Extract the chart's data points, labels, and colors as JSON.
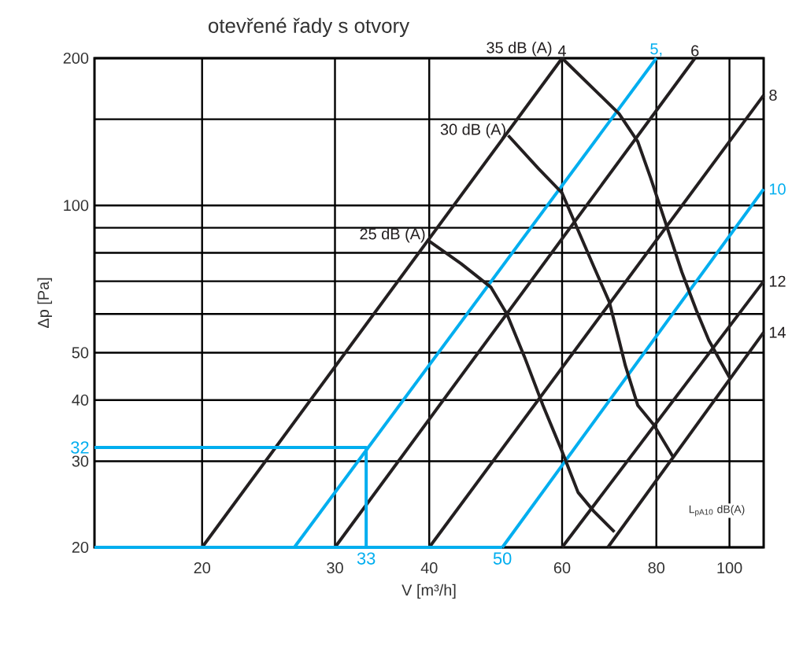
{
  "chart_data": {
    "type": "line",
    "title": "otevřené řady s otvory",
    "xlabel": "V [m³/h]",
    "ylabel": "Δp [Pa]",
    "log": "xy",
    "grid": true,
    "xlim": [
      14.4,
      111
    ],
    "ylim": [
      20,
      200
    ],
    "xticks": [
      20,
      30,
      40,
      60,
      80,
      100
    ],
    "yticks": [
      20,
      30,
      40,
      50,
      {
        "value": 60,
        "label": null
      },
      {
        "value": 70,
        "label": null
      },
      {
        "value": 80,
        "label": null
      },
      {
        "value": 90,
        "label": null
      },
      100,
      {
        "value": 150,
        "label": null
      },
      200
    ],
    "series": [
      {
        "name": "4",
        "color": "#231f20",
        "x": [
          20,
          60
        ],
        "values": [
          20,
          200
        ]
      },
      {
        "name": "5,",
        "color": "#00aeef",
        "x": [
          26.5,
          80
        ],
        "values": [
          20,
          200
        ]
      },
      {
        "name": "6",
        "color": "#231f20",
        "x": [
          30,
          90
        ],
        "values": [
          20,
          200
        ]
      },
      {
        "name": "8",
        "color": "#231f20",
        "x": [
          40,
          111
        ],
        "values": [
          20,
          168
        ]
      },
      {
        "name": "10",
        "color": "#00aeef",
        "x": [
          50,
          111
        ],
        "values": [
          20,
          108
        ]
      },
      {
        "name": "12",
        "color": "#231f20",
        "x": [
          60,
          111
        ],
        "values": [
          20,
          70
        ]
      },
      {
        "name": "14",
        "color": "#231f20",
        "x": [
          69,
          111
        ],
        "values": [
          20,
          55
        ]
      },
      {
        "name": "35 dB (A)",
        "color": "#231f20",
        "x": [
          60,
          71.4,
          75.6,
          78.6,
          82.5,
          86.5,
          90.4,
          93.9,
          100
        ],
        "values": [
          200,
          154,
          135,
          114,
          91,
          73,
          61,
          53,
          44.5
        ]
      },
      {
        "name": "30 dB (A)",
        "color": "#231f20",
        "x": [
          50.9,
          55.8,
          60,
          63,
          66.1,
          69.3,
          71.4,
          72.8,
          75.6,
          79.4,
          84.1
        ],
        "values": [
          139,
          119,
          106,
          89,
          75,
          63.5,
          53,
          47,
          39,
          35.6,
          30.7
        ]
      },
      {
        "name": "25 dB (A)",
        "color": "#231f20",
        "x": [
          39.8,
          44.1,
          48.3,
          50.7,
          53.5,
          56.6,
          60,
          63,
          66.1,
          70.4
        ],
        "values": [
          85,
          76,
          68,
          60,
          49,
          39,
          31.4,
          25.9,
          23.7,
          21.5
        ]
      },
      {
        "color": "#00aeef",
        "x": [
          14.4,
          33,
          33
        ],
        "values": [
          32,
          32,
          20
        ]
      },
      {
        "color": "#00aeef",
        "x": [
          14.4,
          50
        ],
        "values": [
          20,
          20
        ]
      }
    ],
    "annotations": [
      {
        "text": "32",
        "x": 14.4,
        "y": 32
      },
      {
        "text": "33",
        "x": 33,
        "y": 20
      },
      {
        "text": "50",
        "x": 50,
        "y": 20
      },
      "L$_{pA10}$ dB(A)"
    ]
  }
}
